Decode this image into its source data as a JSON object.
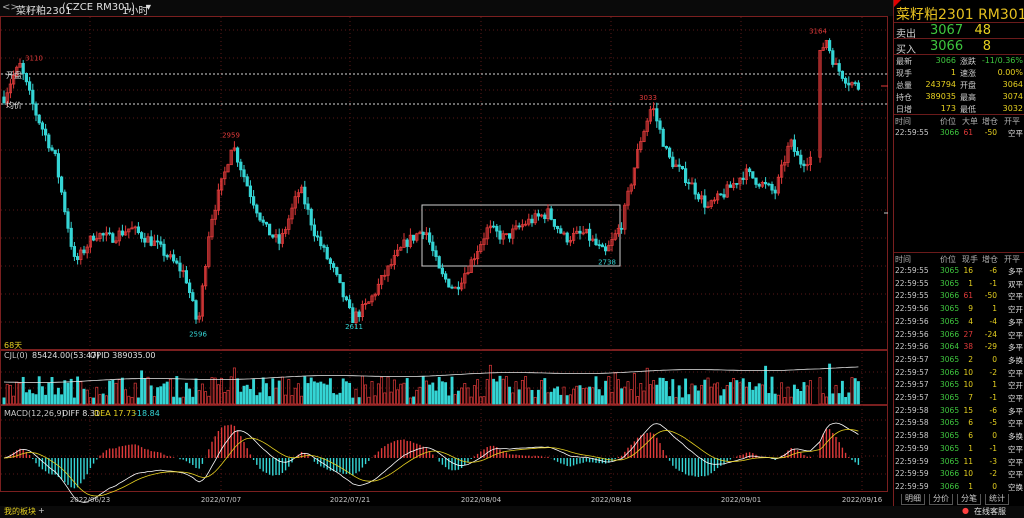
{
  "toolbar": {
    "nav_arrows": "<>",
    "symbol": "菜籽粕2301",
    "index_code": "CZCE RM301",
    "period": "1小时",
    "dropdown_icon": "chevron-down-icon"
  },
  "chart": {
    "ref_label_top": "开盘",
    "ref_label_mid": "均价",
    "bar_count_label": "68天",
    "price_labels": [
      "3110",
      "2959",
      "2596",
      "2611",
      "3033",
      "2738",
      "3164"
    ],
    "volume_header": "CJL(0)",
    "volume_value": "85424.00(53:47)",
    "opid_label": "OPID 389035.00",
    "macd_label": "MACD(12,26,9)",
    "diff_label": "DIFF 8.31",
    "dea_label": "DEA 17.73",
    "macd_value": "-18.84",
    "dates": [
      "2022/06/23",
      "2022/07/07",
      "2022/07/21",
      "2022/08/04",
      "2022/08/18",
      "2022/09/01",
      "2022/09/16"
    ],
    "colors": {
      "up": "#e03a3a",
      "down": "#35d5d5",
      "diff_line": "#ffffff",
      "dea_line": "#e6d020"
    }
  },
  "chart_data": {
    "type": "candlestick",
    "title": "菜籽粕2301",
    "annotated_points": [
      {
        "label": "3110",
        "value": 3110
      },
      {
        "label": "2959",
        "value": 2959
      },
      {
        "label": "2596",
        "value": 2596
      },
      {
        "label": "2611",
        "value": 2611
      },
      {
        "label": "3033",
        "value": 3033
      },
      {
        "label": "2738",
        "value": 2738
      },
      {
        "label": "3164",
        "value": 3164
      }
    ],
    "x_ticks": [
      "2022/06/23",
      "2022/07/07",
      "2022/07/21",
      "2022/08/04",
      "2022/08/18",
      "2022/09/01",
      "2022/09/16"
    ],
    "ylim": [
      2560,
      3200
    ]
  },
  "quote": {
    "title": "菜籽粕2301  RM301",
    "sell": {
      "label": "卖出",
      "price": "3067",
      "volume": "48"
    },
    "buy": {
      "label": "买入",
      "price": "3066",
      "volume": "8"
    },
    "stats": [
      {
        "k": "最新",
        "v": "3066",
        "k2": "涨跌",
        "v2": "-11/0.36%"
      },
      {
        "k": "现手",
        "v": "1",
        "k2": "速涨",
        "v2": "0.00%"
      },
      {
        "k": "总量",
        "v": "243794",
        "k2": "开盘",
        "v2": "3064"
      },
      {
        "k": "持仓",
        "v": "389035",
        "k2": "最高",
        "v2": "3074"
      },
      {
        "k": "日增",
        "v": "173",
        "k2": "最低",
        "v2": "3032"
      }
    ]
  },
  "big_trades": {
    "headers": [
      "时间",
      "价位",
      "大单",
      "增仓",
      "开平"
    ],
    "rows": [
      {
        "time": "22:59:55",
        "price": "3066",
        "qty": "61",
        "chg": "-50",
        "type": "空平"
      }
    ]
  },
  "ticks": {
    "headers": [
      "时间",
      "价位",
      "现手",
      "增仓",
      "开平"
    ],
    "rows": [
      {
        "time": "22:59:55",
        "price": "3065",
        "qty": "16",
        "chg": "-6",
        "type": "多平"
      },
      {
        "time": "22:59:55",
        "price": "3065",
        "qty": "1",
        "chg": "-1",
        "type": "双平"
      },
      {
        "time": "22:59:55",
        "price": "3066",
        "qty": "61",
        "chg": "-50",
        "type": "空平"
      },
      {
        "time": "22:59:56",
        "price": "3065",
        "qty": "9",
        "chg": "1",
        "type": "空开"
      },
      {
        "time": "22:59:56",
        "price": "3065",
        "qty": "4",
        "chg": "-4",
        "type": "多平"
      },
      {
        "time": "22:59:56",
        "price": "3066",
        "qty": "27",
        "chg": "-24",
        "type": "空平"
      },
      {
        "time": "22:59:56",
        "price": "3064",
        "qty": "38",
        "chg": "-29",
        "type": "多平"
      },
      {
        "time": "22:59:57",
        "price": "3065",
        "qty": "2",
        "chg": "0",
        "type": "多换"
      },
      {
        "time": "22:59:57",
        "price": "3066",
        "qty": "10",
        "chg": "-2",
        "type": "空平"
      },
      {
        "time": "22:59:57",
        "price": "3065",
        "qty": "10",
        "chg": "1",
        "type": "空开"
      },
      {
        "time": "22:59:57",
        "price": "3065",
        "qty": "7",
        "chg": "-1",
        "type": "空平"
      },
      {
        "time": "22:59:58",
        "price": "3065",
        "qty": "15",
        "chg": "-6",
        "type": "多平"
      },
      {
        "time": "22:59:58",
        "price": "3065",
        "qty": "6",
        "chg": "-5",
        "type": "空平"
      },
      {
        "time": "22:59:58",
        "price": "3065",
        "qty": "6",
        "chg": "0",
        "type": "多换"
      },
      {
        "time": "22:59:59",
        "price": "3065",
        "qty": "1",
        "chg": "-1",
        "type": "空平"
      },
      {
        "time": "22:59:59",
        "price": "3065",
        "qty": "11",
        "chg": "-3",
        "type": "空平"
      },
      {
        "time": "22:59:59",
        "price": "3066",
        "qty": "10",
        "chg": "-2",
        "type": "空平"
      },
      {
        "time": "22:59:59",
        "price": "3066",
        "qty": "1",
        "chg": "0",
        "type": "空换"
      }
    ]
  },
  "tabs": [
    "明细",
    "分价",
    "分笔",
    "统计"
  ],
  "status": {
    "left": "我的板块",
    "plus": "+",
    "right": "在线客服"
  }
}
